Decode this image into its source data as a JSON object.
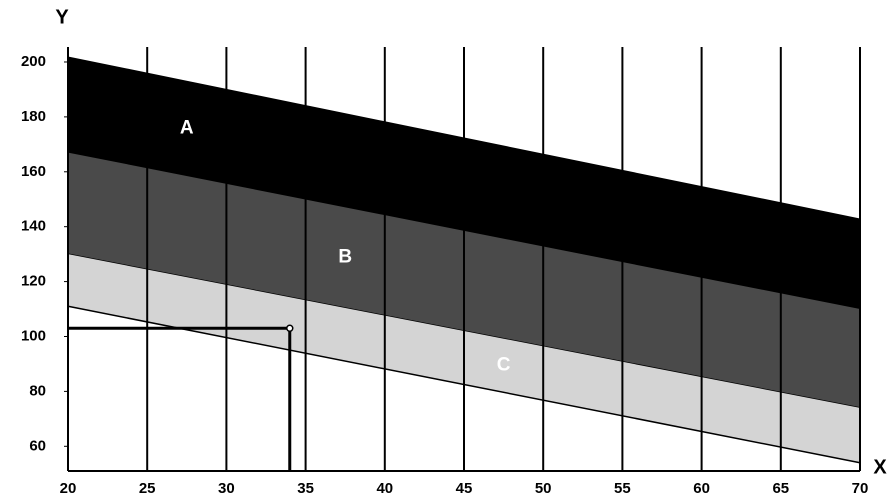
{
  "chart_data": {
    "type": "band",
    "x_label": "X",
    "y_label": "Y",
    "x": [
      20,
      70
    ],
    "series": [
      {
        "name": "A",
        "color": "#000000",
        "upper": [
          202,
          143
        ],
        "lower": [
          167,
          110
        ]
      },
      {
        "name": "B",
        "color": "#4a4a4a",
        "upper": [
          167,
          110
        ],
        "lower": [
          130,
          74
        ]
      },
      {
        "name": "C",
        "color": "#d4d4d4",
        "upper": [
          130,
          74
        ],
        "lower": [
          111,
          54
        ]
      }
    ],
    "reference_point": {
      "x": 34,
      "y": 103
    },
    "xlim": [
      20,
      70
    ],
    "ylim": [
      51,
      204
    ],
    "xticks": [
      20,
      25,
      30,
      35,
      40,
      45,
      50,
      55,
      60,
      65,
      70
    ],
    "yticks": [
      60,
      80,
      100,
      120,
      140,
      160,
      180,
      200
    ],
    "grid_x": true,
    "grid_color": "#000000"
  }
}
